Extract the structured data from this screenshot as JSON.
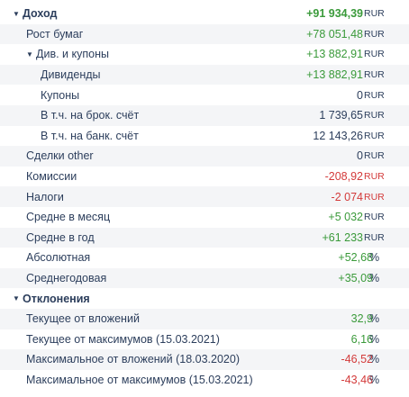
{
  "rows": [
    {
      "type": "section",
      "label": "Доход",
      "value": "+91 934,39",
      "unit": "RUR",
      "valueClass": "pos",
      "unitClass": ""
    },
    {
      "type": "item",
      "level": 1,
      "label": "Рост бумаг",
      "value": "+78 051,48",
      "unit": "RUR",
      "valueClass": "pos",
      "unitClass": ""
    },
    {
      "type": "group",
      "level": 1,
      "label": "Див. и купоны",
      "value": "+13 882,91",
      "unit": "RUR",
      "valueClass": "pos",
      "unitClass": ""
    },
    {
      "type": "item",
      "level": 2,
      "label": "Дивиденды",
      "value": "+13 882,91",
      "unit": "RUR",
      "valueClass": "pos",
      "unitClass": ""
    },
    {
      "type": "item",
      "level": 2,
      "label": "Купоны",
      "value": "0",
      "unit": "RUR",
      "valueClass": "zero",
      "unitClass": ""
    },
    {
      "type": "item",
      "level": 2,
      "label": "В т.ч. на брок. счёт",
      "value": "1 739,65",
      "unit": "RUR",
      "valueClass": "zero",
      "unitClass": ""
    },
    {
      "type": "item",
      "level": 2,
      "label": "В т.ч. на банк. счёт",
      "value": "12 143,26",
      "unit": "RUR",
      "valueClass": "zero",
      "unitClass": ""
    },
    {
      "type": "item",
      "level": 1,
      "label": "Сделки other",
      "value": "0",
      "unit": "RUR",
      "valueClass": "zero",
      "unitClass": ""
    },
    {
      "type": "item",
      "level": 1,
      "label": "Комиссии",
      "value": "-208,92",
      "unit": "RUR",
      "valueClass": "neg",
      "unitClass": "neg"
    },
    {
      "type": "item",
      "level": 1,
      "label": "Налоги",
      "value": "-2 074",
      "unit": "RUR",
      "valueClass": "neg",
      "unitClass": "neg"
    },
    {
      "type": "item",
      "level": 1,
      "label": "Средне в месяц",
      "value": "+5 032",
      "unit": "RUR",
      "valueClass": "pos",
      "unitClass": ""
    },
    {
      "type": "item",
      "level": 1,
      "label": "Средне в год",
      "value": "+61 233",
      "unit": "RUR",
      "valueClass": "pos",
      "unitClass": ""
    },
    {
      "type": "item",
      "level": 1,
      "label": "Абсолютная",
      "value": "+52,68",
      "unit": "%",
      "valueClass": "pos",
      "unitClass": "pct"
    },
    {
      "type": "item",
      "level": 1,
      "label": "Среднегодовая",
      "value": "+35,09",
      "unit": "%",
      "valueClass": "pos",
      "unitClass": "pct"
    },
    {
      "type": "section",
      "label": "Отклонения",
      "value": "",
      "unit": "",
      "valueClass": "",
      "unitClass": ""
    },
    {
      "type": "item",
      "level": 1,
      "label": "Текущее от вложений",
      "value": "32,9",
      "unit": "%",
      "valueClass": "pos",
      "unitClass": "pct"
    },
    {
      "type": "item",
      "level": 1,
      "label": "Текущее от максимумов (15.03.2021)",
      "value": "6,16",
      "unit": "%",
      "valueClass": "pos",
      "unitClass": "pct"
    },
    {
      "type": "item",
      "level": 1,
      "label": "Максимальное от вложений (18.03.2020)",
      "value": "-46,52",
      "unit": "%",
      "valueClass": "neg",
      "unitClass": "pct"
    },
    {
      "type": "item",
      "level": 1,
      "label": "Максимальное от максимумов (15.03.2021)",
      "value": "-43,46",
      "unit": "%",
      "valueClass": "neg",
      "unitClass": "pct"
    }
  ]
}
